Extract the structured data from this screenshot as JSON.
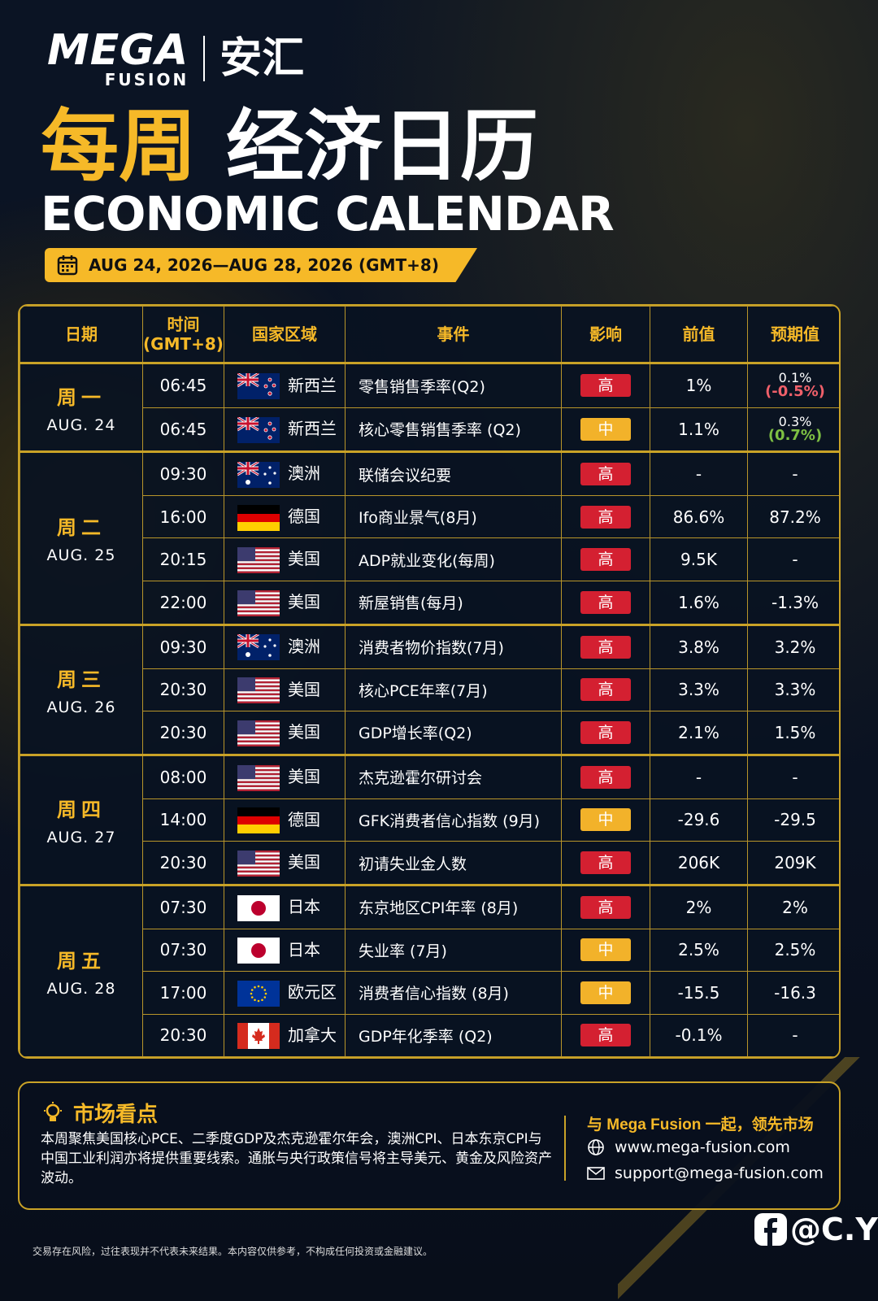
{
  "header": {
    "logo_mega": "MEGA",
    "logo_fusion": "FUSION",
    "logo_cn": "安汇",
    "title_cn_highlight": "每周",
    "title_cn": "经济日历",
    "title_en": "ECONOMIC CALENDAR",
    "date_range": "AUG 24, 2026—AUG 28, 2026 (GMT+8)"
  },
  "table": {
    "columns": [
      "日期",
      "时间\n(GMT+8)",
      "国家区域",
      "事件",
      "影响",
      "前值",
      "预期值"
    ],
    "days": [
      {
        "day": "周一",
        "date": "AUG. 24",
        "events": [
          {
            "time": "06:45",
            "flag": "nz",
            "country": "新西兰",
            "event": "零售销售季率(Q2)",
            "impact": "高",
            "impact_color": "#d42031",
            "previous": "1%",
            "forecast": "0.1%",
            "forecast_note": "(-0.5%)",
            "forecast_note_color": "#f0606a"
          },
          {
            "time": "06:45",
            "flag": "nz",
            "country": "新西兰",
            "event": "核心零售销售季率 (Q2)",
            "impact": "中",
            "impact_color": "#f2b22a",
            "previous": "1.1%",
            "forecast": "0.3%",
            "forecast_note": "(0.7%)",
            "forecast_note_color": "#7ec043"
          }
        ]
      },
      {
        "day": "周二",
        "date": "AUG. 25",
        "events": [
          {
            "time": "09:30",
            "flag": "au",
            "country": "澳洲",
            "event": "联储会议纪要",
            "impact": "高",
            "impact_color": "#d42031",
            "previous": "-",
            "forecast": "-"
          },
          {
            "time": "16:00",
            "flag": "de",
            "country": "德国",
            "event": "Ifo商业景气(8月)",
            "impact": "高",
            "impact_color": "#d42031",
            "previous": "86.6%",
            "forecast": "87.2%"
          },
          {
            "time": "20:15",
            "flag": "us",
            "country": "美国",
            "event": "ADP就业变化(每周)",
            "impact": "高",
            "impact_color": "#d42031",
            "previous": "9.5K",
            "forecast": "-"
          },
          {
            "time": "22:00",
            "flag": "us",
            "country": "美国",
            "event": "新屋销售(每月)",
            "impact": "高",
            "impact_color": "#d42031",
            "previous": "1.6%",
            "forecast": "-1.3%"
          }
        ]
      },
      {
        "day": "周三",
        "date": "AUG. 26",
        "events": [
          {
            "time": "09:30",
            "flag": "au",
            "country": "澳洲",
            "event": "消费者物价指数(7月)",
            "impact": "高",
            "impact_color": "#d42031",
            "previous": "3.8%",
            "forecast": "3.2%"
          },
          {
            "time": "20:30",
            "flag": "us",
            "country": "美国",
            "event": "核心PCE年率(7月)",
            "impact": "高",
            "impact_color": "#d42031",
            "previous": "3.3%",
            "forecast": "3.3%"
          },
          {
            "time": "20:30",
            "flag": "us",
            "country": "美国",
            "event": "GDP增长率(Q2)",
            "impact": "高",
            "impact_color": "#d42031",
            "previous": "2.1%",
            "forecast": "1.5%"
          }
        ]
      },
      {
        "day": "周四",
        "date": "AUG. 27",
        "events": [
          {
            "time": "08:00",
            "flag": "us",
            "country": "美国",
            "event": "杰克逊霍尔研讨会",
            "impact": "高",
            "impact_color": "#d42031",
            "previous": "-",
            "forecast": "-"
          },
          {
            "time": "14:00",
            "flag": "de",
            "country": "德国",
            "event": "GFK消费者信心指数 (9月)",
            "impact": "中",
            "impact_color": "#f2b22a",
            "previous": "-29.6",
            "forecast": "-29.5"
          },
          {
            "time": "20:30",
            "flag": "us",
            "country": "美国",
            "event": "初请失业金人数",
            "impact": "高",
            "impact_color": "#d42031",
            "previous": "206K",
            "forecast": "209K"
          }
        ]
      },
      {
        "day": "周五",
        "date": "AUG. 28",
        "events": [
          {
            "time": "07:30",
            "flag": "jp",
            "country": "日本",
            "event": "东京地区CPI年率 (8月)",
            "impact": "高",
            "impact_color": "#d42031",
            "previous": "2%",
            "forecast": "2%"
          },
          {
            "time": "07:30",
            "flag": "jp",
            "country": "日本",
            "event": "失业率 (7月)",
            "impact": "中",
            "impact_color": "#f2b22a",
            "previous": "2.5%",
            "forecast": "2.5%"
          },
          {
            "time": "17:00",
            "flag": "eu",
            "country": "欧元区",
            "event": "消费者信心指数 (8月)",
            "impact": "中",
            "impact_color": "#f2b22a",
            "previous": "-15.5",
            "forecast": "-16.3"
          },
          {
            "time": "20:30",
            "flag": "ca",
            "country": "加拿大",
            "event": "GDP年化季率 (Q2)",
            "impact": "高",
            "impact_color": "#d42031",
            "previous": "-0.1%",
            "forecast": "-"
          }
        ]
      }
    ]
  },
  "footer": {
    "highlights_title": "市场看点",
    "highlights_text": "本周聚焦美国核心PCE、二季度GDP及杰克逊霍尔年会，澳洲CPI、日本东京CPI与中国工业利润亦将提供重要线索。通胀与央行政策信号将主导美元、黄金及风险资产波动。",
    "tagline": "与 Mega Fusion 一起，领先市场",
    "website": "www.mega-fusion.com",
    "email": "support@mega-fusion.com",
    "social": "@C.Y",
    "disclaimer": "交易存在风险，过往表现并不代表未来结果。本内容仅供参考，不构成任何投资或金融建议。"
  }
}
